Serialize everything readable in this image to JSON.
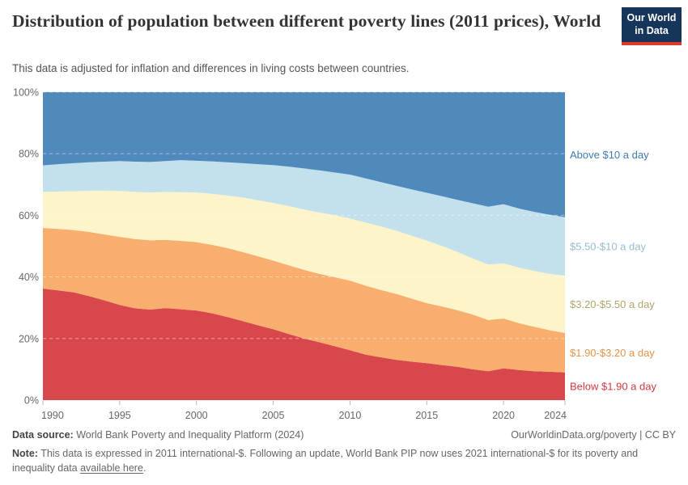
{
  "header": {
    "title": "Distribution of population between different poverty lines (2011 prices), World",
    "subtitle": "This data is adjusted for inflation and differences in living costs between countries.",
    "logo_line1": "Our World",
    "logo_line2": "in Data",
    "logo_bg": "#15355a",
    "logo_accent": "#dc3a2d"
  },
  "chart_data": {
    "type": "area",
    "stacked": true,
    "title": "Distribution of population between different poverty lines (2011 prices), World",
    "xlabel": "",
    "ylabel": "",
    "ylim": [
      0,
      100
    ],
    "grid": "dashed horizontal at 20/40/60/80/100%",
    "legend_position": "right-edge series labels",
    "x": [
      1990,
      1991,
      1992,
      1993,
      1994,
      1995,
      1996,
      1997,
      1998,
      1999,
      2000,
      2001,
      2002,
      2003,
      2004,
      2005,
      2006,
      2007,
      2008,
      2009,
      2010,
      2011,
      2012,
      2013,
      2014,
      2015,
      2016,
      2017,
      2018,
      2019,
      2020,
      2021,
      2022,
      2023,
      2024
    ],
    "xticks": [
      1990,
      1995,
      2000,
      2005,
      2010,
      2015,
      2020,
      2024
    ],
    "yticks": [
      "0%",
      "20%",
      "40%",
      "60%",
      "80%",
      "100%"
    ],
    "series": [
      {
        "id": "below-1-90",
        "name": "Below $1.90 a day",
        "color": "#d8474b",
        "label_color": "#d03a40",
        "values": [
          36.2,
          35.6,
          35.0,
          33.8,
          32.4,
          30.9,
          29.8,
          29.4,
          29.9,
          29.5,
          29.1,
          28.2,
          27.0,
          25.7,
          24.3,
          23.0,
          21.5,
          20.0,
          18.8,
          17.5,
          16.2,
          14.8,
          13.9,
          13.1,
          12.5,
          12.0,
          11.4,
          10.8,
          10.0,
          9.4,
          10.3,
          9.8,
          9.4,
          9.2,
          9.0
        ]
      },
      {
        "id": "1-90-3-20",
        "name": "$1.90-$3.20 a day",
        "color": "#f8ae6e",
        "label_color": "#e3954d",
        "values": [
          19.7,
          20.0,
          20.2,
          20.8,
          21.4,
          22.1,
          22.5,
          22.5,
          22.1,
          22.2,
          22.2,
          22.2,
          22.4,
          22.4,
          22.4,
          22.3,
          22.3,
          22.3,
          22.2,
          22.4,
          22.6,
          22.4,
          21.9,
          21.4,
          20.5,
          19.5,
          19.0,
          18.4,
          17.8,
          16.6,
          16.2,
          15.2,
          14.4,
          13.5,
          12.8
        ]
      },
      {
        "id": "3-20-5-50",
        "name": "$3.20-$5.50 a day",
        "color": "#fdf4c9",
        "label_color": "#b0a66c",
        "values": [
          11.7,
          12.1,
          12.6,
          13.4,
          14.2,
          14.9,
          15.3,
          15.5,
          15.6,
          15.8,
          16.1,
          16.6,
          17.0,
          17.7,
          18.2,
          18.7,
          19.2,
          19.6,
          19.9,
          20.1,
          20.2,
          20.5,
          20.6,
          20.5,
          20.4,
          20.3,
          19.6,
          18.9,
          18.2,
          18.0,
          17.9,
          18.0,
          18.1,
          18.3,
          18.6
        ]
      },
      {
        "id": "5-50-10",
        "name": "$5.50-$10 a day",
        "color": "#c3e1ed",
        "label_color": "#96bcd1",
        "values": [
          8.6,
          8.9,
          9.1,
          9.2,
          9.4,
          9.7,
          9.8,
          9.9,
          10.0,
          10.4,
          10.3,
          10.5,
          10.8,
          11.1,
          11.7,
          12.3,
          12.8,
          13.3,
          13.7,
          13.9,
          14.2,
          14.3,
          14.4,
          14.6,
          15.0,
          15.5,
          16.2,
          16.9,
          17.9,
          18.8,
          19.2,
          19.2,
          19.2,
          19.2,
          19.0
        ]
      },
      {
        "id": "above-10",
        "name": "Above $10 a day",
        "color": "#5089bc",
        "label_color": "#3d7cb1",
        "values": [
          23.8,
          23.4,
          23.1,
          22.8,
          22.6,
          22.4,
          22.6,
          22.7,
          22.4,
          22.1,
          22.3,
          22.5,
          22.8,
          23.1,
          23.4,
          23.7,
          24.2,
          24.8,
          25.4,
          26.1,
          26.8,
          28.0,
          29.2,
          30.4,
          31.6,
          32.7,
          33.8,
          35.0,
          36.1,
          37.2,
          36.4,
          37.8,
          38.9,
          39.8,
          40.6
        ]
      }
    ]
  },
  "axes": {
    "tick_color": "#b9b9b9",
    "label_color": "#666666",
    "grid_color_over_area": "rgba(255,255,255,0.5)"
  },
  "footer": {
    "source_label": "Data source:",
    "source_text": " World Bank Poverty and Inequality Platform (2024)",
    "attribution": "OurWorldinData.org/poverty | CC BY",
    "note_label": "Note:",
    "note_text": " This data is expressed in 2011 international-$. Following an update, World Bank PIP now uses 2021 international-$ for its poverty and inequality data ",
    "note_link": "available here",
    "note_end": "."
  }
}
